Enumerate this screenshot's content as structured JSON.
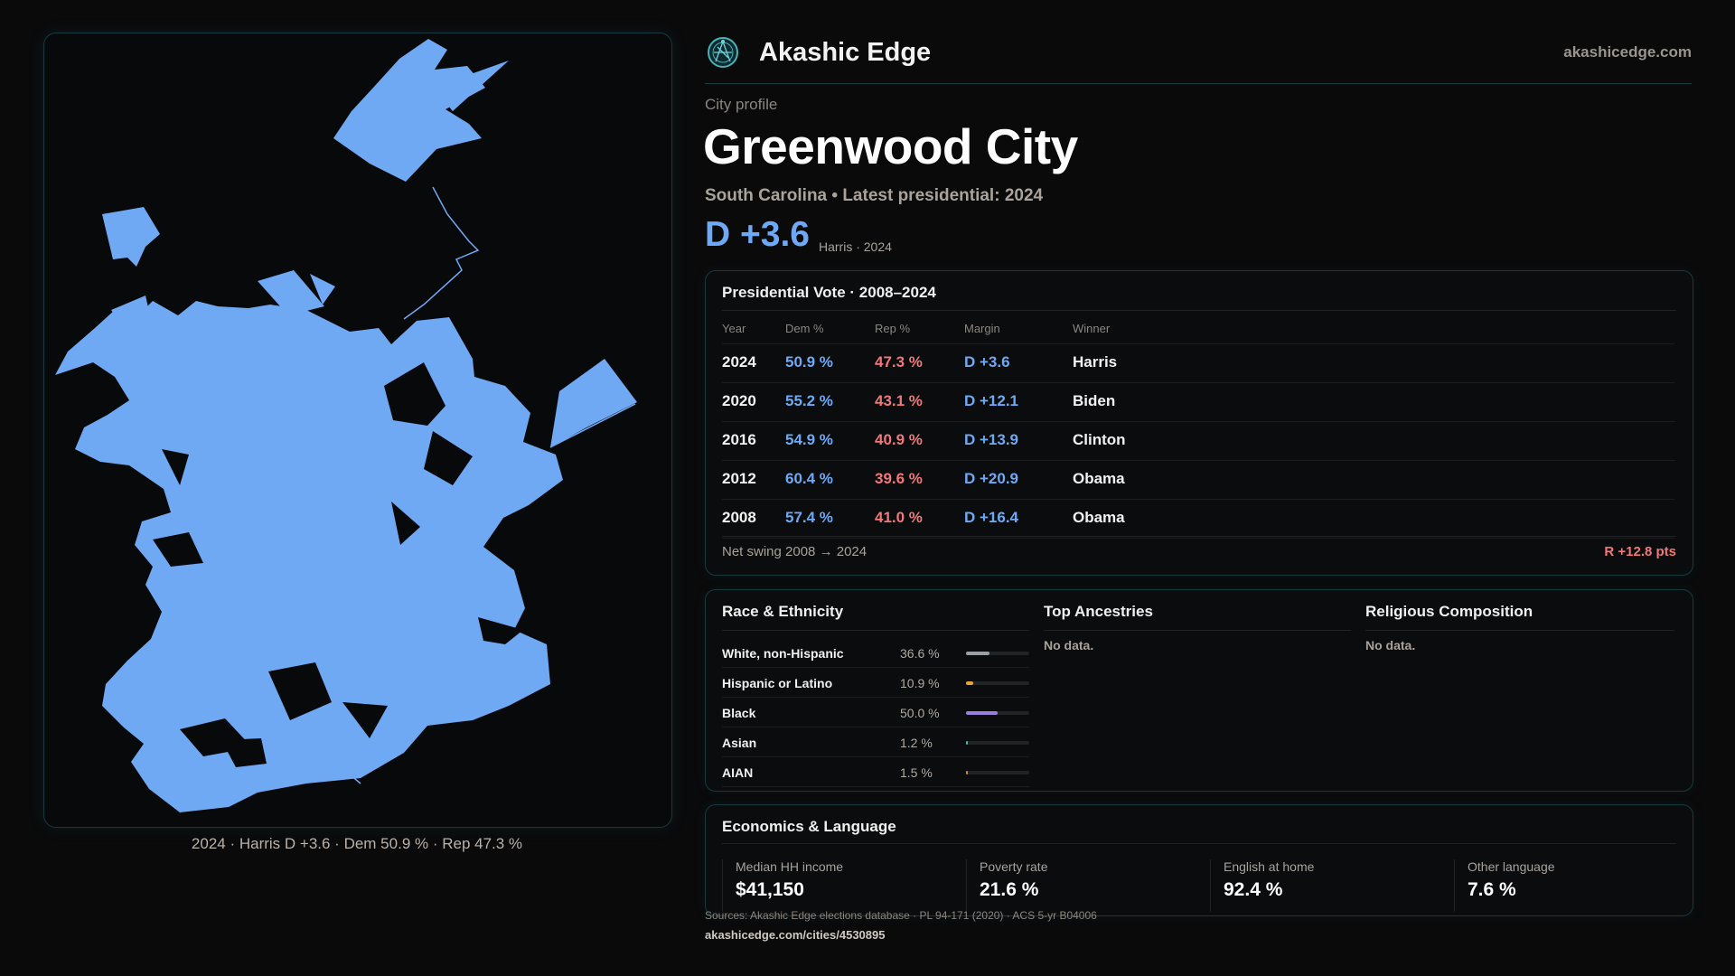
{
  "map": {
    "caption": "2024 · Harris D +3.6 · Dem 50.9 % · Rep 47.3 %",
    "fill_color": "#6fa9f4"
  },
  "header": {
    "brand": "Akashic Edge",
    "site": "akashicedge.com",
    "logo_icon": "globe-network-icon"
  },
  "profile": {
    "eyebrow": "City profile",
    "city": "Greenwood City",
    "subline": "South Carolina • Latest presidential: 2024",
    "margin": "D +3.6",
    "margin_note": "Harris · 2024"
  },
  "presidential": {
    "title": "Presidential Vote · 2008–2024",
    "columns": [
      "Year",
      "Dem %",
      "Rep %",
      "Margin",
      "Winner"
    ],
    "rows": [
      {
        "year": "2024",
        "dem": "50.9 %",
        "rep": "47.3 %",
        "margin": "D +3.6",
        "winner": "Harris"
      },
      {
        "year": "2020",
        "dem": "55.2 %",
        "rep": "43.1 %",
        "margin": "D +12.1",
        "winner": "Biden"
      },
      {
        "year": "2016",
        "dem": "54.9 %",
        "rep": "40.9 %",
        "margin": "D +13.9",
        "winner": "Clinton"
      },
      {
        "year": "2012",
        "dem": "60.4 %",
        "rep": "39.6 %",
        "margin": "D +20.9",
        "winner": "Obama"
      },
      {
        "year": "2008",
        "dem": "57.4 %",
        "rep": "41.0 %",
        "margin": "D +16.4",
        "winner": "Obama"
      }
    ],
    "swing_label": "Net swing 2008 → 2024",
    "swing_value": "R +12.8 pts"
  },
  "race": {
    "title": "Race & Ethnicity",
    "items": [
      {
        "label": "White, non-Hispanic",
        "pct": "36.6 %",
        "share": 0.366,
        "color": "#9aa0a6"
      },
      {
        "label": "Hispanic or Latino",
        "pct": "10.9 %",
        "share": 0.109,
        "color": "#e8a33a"
      },
      {
        "label": "Black",
        "pct": "50.0 %",
        "share": 0.5,
        "color": "#9b7fe0"
      },
      {
        "label": "Asian",
        "pct": "1.2 %",
        "share": 0.012,
        "color": "#4fb3a6"
      },
      {
        "label": "AIAN",
        "pct": "1.5 %",
        "share": 0.015,
        "color": "#d08a3a"
      }
    ]
  },
  "ancestries": {
    "title": "Top Ancestries",
    "empty": "No data."
  },
  "religion": {
    "title": "Religious Composition",
    "empty": "No data."
  },
  "economics": {
    "title": "Economics & Language",
    "stats": [
      {
        "label": "Median HH income",
        "value": "$41,150"
      },
      {
        "label": "Poverty rate",
        "value": "21.6 %"
      },
      {
        "label": "English at home",
        "value": "92.4 %"
      },
      {
        "label": "Other language",
        "value": "7.6 %"
      }
    ]
  },
  "footer": {
    "sources": "Sources: Akashic Edge elections database · PL 94-171 (2020) · ACS 5-yr B04006",
    "url": "akashicedge.com/cities/4530895"
  }
}
